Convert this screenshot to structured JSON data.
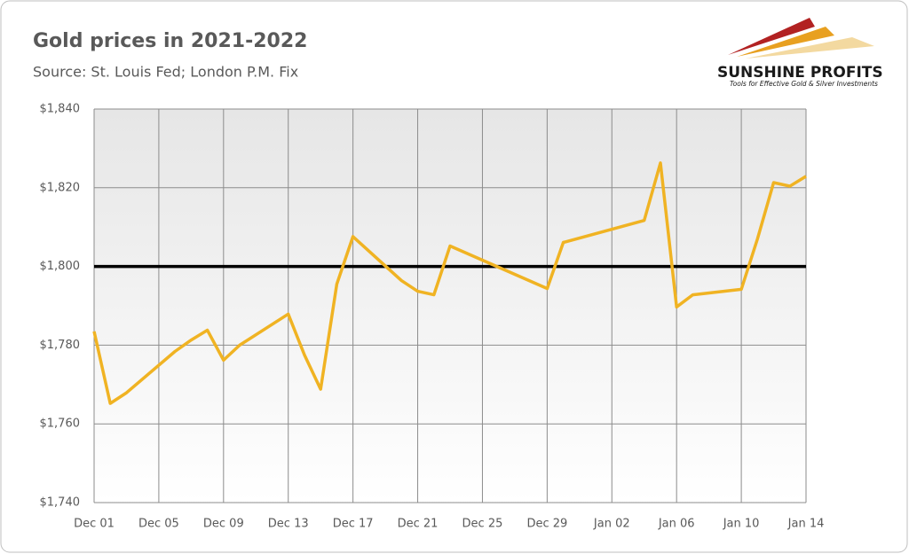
{
  "chart_data": {
    "type": "line",
    "title": "Gold prices in 2021-2022",
    "subtitle": "Source: St. Louis Fed; London P.M. Fix",
    "logo": {
      "name": "SUNSHINE PROFITS",
      "tagline": "Tools for Effective Gold & Silver Investments"
    },
    "x": [
      "Dec 01",
      "Dec 02",
      "Dec 03",
      "Dec 06",
      "Dec 07",
      "Dec 08",
      "Dec 09",
      "Dec 10",
      "Dec 13",
      "Dec 14",
      "Dec 15",
      "Dec 16",
      "Dec 17",
      "Dec 20",
      "Dec 21",
      "Dec 22",
      "Dec 23",
      "Dec 29",
      "Dec 30",
      "Jan 04",
      "Jan 05",
      "Jan 06",
      "Jan 07",
      "Jan 10",
      "Jan 11",
      "Jan 12",
      "Jan 13",
      "Jan 14"
    ],
    "series": [
      {
        "name": "Gold price",
        "color": "#f0b323",
        "values": [
          1783.5,
          1765.2,
          1767.9,
          1778.4,
          1781.3,
          1783.8,
          1776.2,
          1780.0,
          1787.9,
          1777.5,
          1768.8,
          1795.5,
          1807.6,
          1796.4,
          1793.7,
          1792.8,
          1805.2,
          1794.4,
          1806.1,
          1811.7,
          1826.3,
          1789.7,
          1792.8,
          1794.2,
          1807.0,
          1821.3,
          1820.4,
          1822.9
        ]
      }
    ],
    "reference_line": 1800,
    "xlim": [
      "Dec 01",
      "Jan 14"
    ],
    "xticks": [
      "Dec 01",
      "Dec 05",
      "Dec 09",
      "Dec 13",
      "Dec 17",
      "Dec 21",
      "Dec 25",
      "Dec 29",
      "Jan 02",
      "Jan 06",
      "Jan 10",
      "Jan 14"
    ],
    "ylim": [
      1740,
      1840
    ],
    "yticks": [
      {
        "value": 1740,
        "label": "$1,740"
      },
      {
        "value": 1760,
        "label": "$1,760"
      },
      {
        "value": 1780,
        "label": "$1,780"
      },
      {
        "value": 1800,
        "label": "$1,800"
      },
      {
        "value": 1820,
        "label": "$1,820"
      },
      {
        "value": 1840,
        "label": "$1,840"
      }
    ],
    "grid": true
  }
}
